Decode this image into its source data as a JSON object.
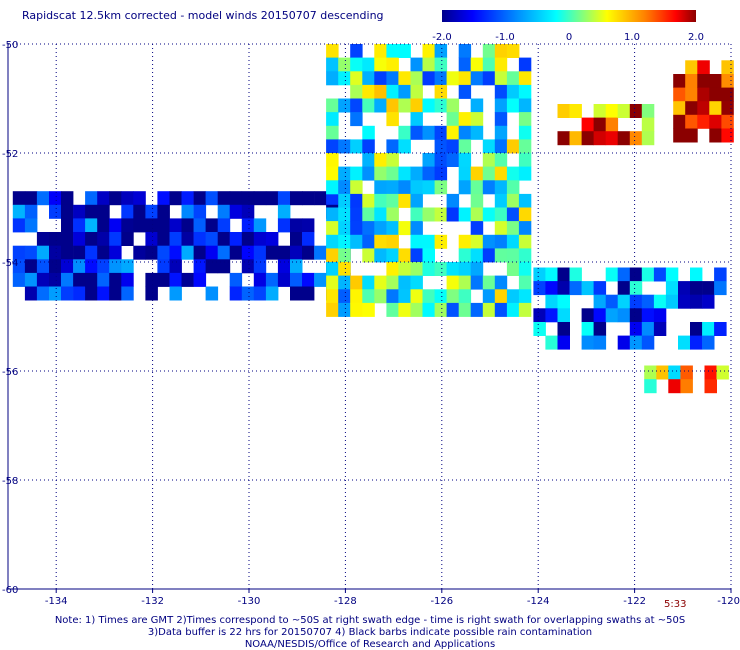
{
  "title": "Rapidscat 12.5km corrected - model winds 20150707 descending",
  "colorbar": {
    "labels": [
      "-2.0",
      "-1.0",
      "0",
      "1.0",
      "2.0"
    ],
    "label_values": [
      -2.0,
      -1.0,
      0,
      1.0,
      2.0
    ],
    "range": [
      -2.0,
      2.0
    ]
  },
  "time_label": "5:33",
  "notes": [
    "Note: 1) Times are GMT 2)Times correspond to ~50S at right swath edge - time is right swath for overlapping swaths at ~50S",
    "3)Data buffer is 22 hrs for 20150707 4) Black barbs indicate possible rain contamination",
    "NOAA/NESDIS/Office of Research and Applications"
  ],
  "chart_data": {
    "type": "heatmap",
    "title": "Rapidscat 12.5km corrected - model winds 20150707 descending",
    "x_tick_labels": [
      "-134",
      "-132",
      "-130",
      "-128",
      "-126",
      "-124",
      "-122",
      "-120"
    ],
    "x_ticks": [
      -134,
      -132,
      -130,
      -128,
      -126,
      -124,
      -122,
      -120
    ],
    "y_tick_labels": [
      "-50",
      "-52",
      "-54",
      "-56",
      "-58",
      "-60"
    ],
    "y_ticks": [
      -50,
      -52,
      -54,
      -56,
      -58,
      -60
    ],
    "xlim": [
      -135,
      -120
    ],
    "ylim": [
      -60,
      -50
    ],
    "grid": true,
    "colorbar_range": [
      -2.0,
      2.0
    ],
    "swaths": [
      {
        "region": "far-west strip",
        "lon": [
          -134.9,
          -128.1
        ],
        "lat": [
          -54.7,
          -52.7
        ],
        "mean_diff": -1.7
      },
      {
        "region": "central swath",
        "lon": [
          -128.4,
          -124.2
        ],
        "lat": [
          -55.0,
          -50.0
        ],
        "mean_diff": -0.2
      },
      {
        "region": "north-east patch",
        "lon": [
          -123.6,
          -121.8
        ],
        "lat": [
          -51.8,
          -51.1
        ],
        "mean_diff": 1.3
      },
      {
        "region": "far north-east",
        "lon": [
          -121.2,
          -120.1
        ],
        "lat": [
          -51.7,
          -50.3
        ],
        "mean_diff": 1.8
      },
      {
        "region": "south-east swath",
        "lon": [
          -124.1,
          -120.1
        ],
        "lat": [
          -55.5,
          -54.1
        ],
        "mean_diff": -1.1
      },
      {
        "region": "south-east edge",
        "lon": [
          -121.8,
          -120.1
        ],
        "lat": [
          -56.2,
          -55.9
        ],
        "mean_diff": 0.6
      }
    ]
  }
}
